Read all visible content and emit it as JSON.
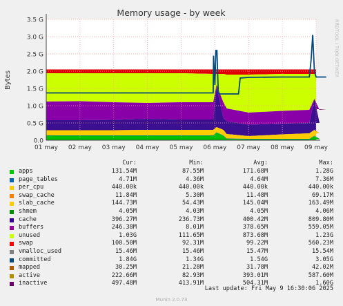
{
  "chart_data": {
    "type": "area",
    "title": "Memory usage - by week",
    "ylabel": "Bytes",
    "ylim": [
      0,
      3.5
    ],
    "y_unit": "G",
    "yticks": [
      "0.0",
      "0.5 G",
      "1.0 G",
      "1.5 G",
      "2.0 G",
      "2.5 G",
      "3.0 G",
      "3.5 G"
    ],
    "xticks": [
      "01 may",
      "02 may",
      "03 may",
      "04 may",
      "05 may",
      "06 may",
      "07 may",
      "08 may",
      "09 may"
    ],
    "grid": true,
    "side_label": "RRDTOOL / TOBI OETIKER",
    "stack_bounds_G": [
      {
        "t": [
          0,
          1,
          2,
          3,
          4,
          4.95,
          5.05,
          5.25,
          5.35,
          6,
          7,
          7.8,
          7.95,
          8.1,
          8.3
        ],
        "apps": [
          0.13,
          0.13,
          0.13,
          0.13,
          0.13,
          0.13,
          0.22,
          0.13,
          0.04,
          0.03,
          0.03,
          0.03,
          0.12,
          0.03,
          0.03
        ],
        "page_tables": [
          0.14,
          0.14,
          0.14,
          0.14,
          0.14,
          0.14,
          0.23,
          0.14,
          0.05,
          0.04,
          0.04,
          0.04,
          0.13,
          0.04,
          0.04
        ],
        "slab_cache": [
          0.29,
          0.29,
          0.29,
          0.3,
          0.3,
          0.3,
          0.38,
          0.3,
          0.18,
          0.12,
          0.17,
          0.2,
          0.3,
          0.2,
          0.2
        ],
        "cache": [
          0.58,
          0.58,
          0.59,
          0.62,
          0.6,
          0.6,
          1.55,
          0.65,
          0.55,
          0.45,
          0.48,
          0.5,
          1.2,
          0.5,
          0.5
        ],
        "buffers": [
          1.12,
          1.13,
          1.1,
          1.08,
          1.1,
          1.1,
          1.6,
          1.1,
          0.92,
          0.8,
          0.85,
          0.88,
          1.2,
          0.88,
          0.9
        ],
        "unused": [
          1.94,
          1.94,
          1.94,
          1.94,
          1.94,
          1.92,
          1.92,
          1.92,
          1.9,
          1.9,
          1.92,
          1.92,
          1.92,
          1.92,
          1.92
        ],
        "swap": [
          2.05,
          2.05,
          2.05,
          2.05,
          2.05,
          2.05,
          2.05,
          2.05,
          2.05,
          2.05,
          2.05,
          2.05,
          2.05,
          2.05,
          2.05
        ]
      }
    ],
    "committed_line_G": {
      "t": [
        0,
        4.95,
        4.96,
        5.0,
        5.03,
        5.06,
        5.1,
        5.12,
        5.14,
        5.5,
        5.7,
        5.75,
        6,
        7,
        7.8,
        7.85,
        7.9,
        7.95,
        8.0,
        8.05,
        8.1,
        8.3
      ],
      "v": [
        1.37,
        1.37,
        2.45,
        1.6,
        2.6,
        2.6,
        1.4,
        1.35,
        1.34,
        1.34,
        1.34,
        1.8,
        1.82,
        1.83,
        1.83,
        2.3,
        3.05,
        2.0,
        1.83,
        1.83,
        1.83,
        1.83
      ]
    },
    "legend_headers": [
      "Cur:",
      "Min:",
      "Avg:",
      "Max:"
    ],
    "series": [
      {
        "name": "apps",
        "color": "#00cc00",
        "cur": "131.54M",
        "min": "87.55M",
        "avg": "171.68M",
        "max": "1.28G"
      },
      {
        "name": "page_tables",
        "color": "#0066b3",
        "cur": "4.71M",
        "min": "4.36M",
        "avg": "4.64M",
        "max": "7.36M"
      },
      {
        "name": "per_cpu",
        "color": "#ff8000",
        "cur": "440.00k",
        "min": "440.00k",
        "avg": "440.00k",
        "max": "440.00k"
      },
      {
        "name": "swap_cache",
        "color": "#ffcc00",
        "cur": "11.84M",
        "min": "5.30M",
        "avg": "11.48M",
        "max": "69.17M"
      },
      {
        "name": "slab_cache",
        "color": "#330099",
        "cur": "144.73M",
        "min": "54.43M",
        "avg": "145.04M",
        "max": "163.49M"
      },
      {
        "name": "shmem",
        "color": "#990099",
        "cur": "4.05M",
        "min": "4.03M",
        "avg": "4.05M",
        "max": "4.06M"
      },
      {
        "name": "cache",
        "color": "#ccff00",
        "cur": "396.27M",
        "min": "236.73M",
        "avg": "400.42M",
        "max": "809.80M"
      },
      {
        "name": "buffers",
        "color": "#ff0000",
        "cur": "246.38M",
        "min": "8.01M",
        "avg": "378.65M",
        "max": "559.05M"
      },
      {
        "name": "unused",
        "color": "#808080",
        "cur": "1.03G",
        "min": "111.65M",
        "avg": "873.68M",
        "max": "1.23G"
      },
      {
        "name": "swap",
        "color": "#008f00",
        "cur": "100.50M",
        "min": "92.31M",
        "avg": "99.22M",
        "max": "560.23M"
      },
      {
        "name": "vmalloc_used",
        "color": "#00487d",
        "cur": "15.46M",
        "min": "15.46M",
        "avg": "15.47M",
        "max": "15.54M"
      },
      {
        "name": "committed",
        "color": "#b35a00",
        "cur": "1.84G",
        "min": "1.34G",
        "avg": "1.54G",
        "max": "3.05G"
      },
      {
        "name": "mapped",
        "color": "#b38f00",
        "cur": "30.25M",
        "min": "21.28M",
        "avg": "31.78M",
        "max": "42.02M"
      },
      {
        "name": "active",
        "color": "#6b006b",
        "cur": "222.66M",
        "min": "82.93M",
        "avg": "393.01M",
        "max": "587.60M"
      },
      {
        "name": "inactive",
        "color": "#8fb300",
        "cur": "497.48M",
        "min": "413.91M",
        "avg": "504.31M",
        "max": "1.60G"
      }
    ],
    "legend_swatches": [
      "#00cc00",
      "#0066b3",
      "#ffcc00",
      "#ff8000",
      "#ffcc00",
      "#008f00",
      "#330099",
      "#990099",
      "#ccff00",
      "#ff0000",
      "#808080",
      "#00487d",
      "#b35a00",
      "#b38f00",
      "#6b006b"
    ]
  },
  "footer": {
    "last_update": "Last update: Fri May  9 16:30:06 2025",
    "generator": "Munin 2.0.73"
  }
}
